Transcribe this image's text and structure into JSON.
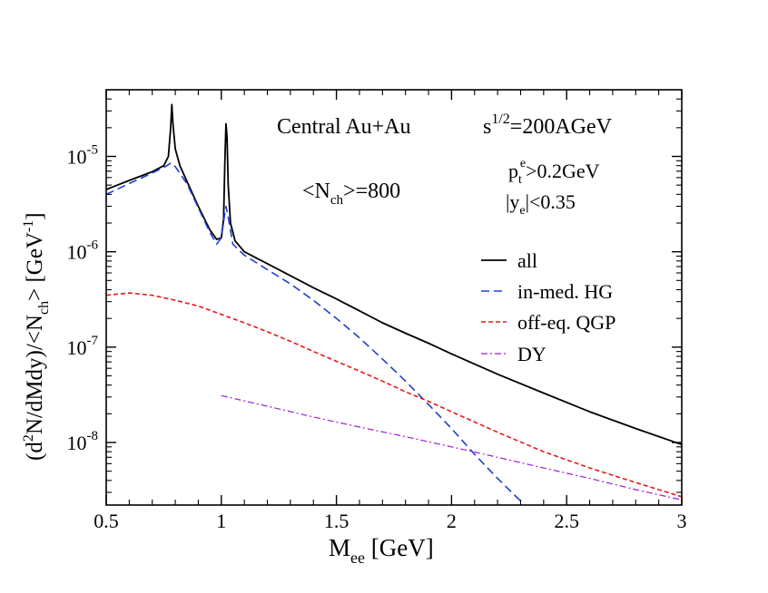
{
  "chart_data": {
    "type": "line",
    "title": "",
    "xlabel": {
      "main": "M",
      "sub": "ee",
      "unit": " [GeV]"
    },
    "ylabel": {
      "p1": "(d",
      "sup1": "2",
      "p2": "N/dMdy)/<N",
      "sub1": "ch",
      "p3": "> [GeV",
      "sup2": "-1",
      "p4": "]"
    },
    "xlim": [
      0.5,
      3.0
    ],
    "ylim": [
      2.3e-09,
      5e-05
    ],
    "yscale": "log",
    "grid": false,
    "xticks": [
      {
        "value": 0.5,
        "label": "0.5"
      },
      {
        "value": 1.0,
        "label": "1"
      },
      {
        "value": 1.5,
        "label": "1.5"
      },
      {
        "value": 2.0,
        "label": "2"
      },
      {
        "value": 2.5,
        "label": "2.5"
      },
      {
        "value": 3.0,
        "label": "3"
      }
    ],
    "yticks": [
      {
        "value": 1e-08,
        "base": "10",
        "exp": "-8"
      },
      {
        "value": 1e-07,
        "base": "10",
        "exp": "-7"
      },
      {
        "value": 1e-06,
        "base": "10",
        "exp": "-6"
      },
      {
        "value": 1e-05,
        "base": "10",
        "exp": "-5"
      }
    ],
    "annotations": {
      "system": "Central Au+Au",
      "energy": {
        "main": "s",
        "sup": "1/2",
        "rest": "=200AGeV"
      },
      "nch": {
        "p1": "<N",
        "sub": "ch",
        "p2": ">=800"
      },
      "pt": {
        "main": "p",
        "sub": "t",
        "sup": "e",
        "rest": ">0.2GeV"
      },
      "ye": {
        "p1": "|y",
        "sub": "e",
        "p2": "|<0.35"
      }
    },
    "legend_position": "right",
    "series": [
      {
        "name": "all",
        "color": "#000000",
        "dash": "solid",
        "points": [
          [
            0.5,
            4.5e-06
          ],
          [
            0.6,
            5.6e-06
          ],
          [
            0.7,
            6.9e-06
          ],
          [
            0.75,
            8e-06
          ],
          [
            0.77,
            1e-05
          ],
          [
            0.78,
            2e-05
          ],
          [
            0.785,
            3.5e-05
          ],
          [
            0.79,
            2.2e-05
          ],
          [
            0.8,
            1.2e-05
          ],
          [
            0.82,
            8e-06
          ],
          [
            0.85,
            5.5e-06
          ],
          [
            0.9,
            3e-06
          ],
          [
            0.95,
            1.7e-06
          ],
          [
            0.98,
            1.35e-06
          ],
          [
            1.0,
            1.4e-06
          ],
          [
            1.01,
            2.2e-06
          ],
          [
            1.015,
            8e-06
          ],
          [
            1.02,
            2.2e-05
          ],
          [
            1.025,
            1.6e-05
          ],
          [
            1.03,
            5e-06
          ],
          [
            1.04,
            2e-06
          ],
          [
            1.06,
            1.3e-06
          ],
          [
            1.1,
            1e-06
          ],
          [
            1.2,
            7.5e-07
          ],
          [
            1.3,
            5.6e-07
          ],
          [
            1.4,
            4.2e-07
          ],
          [
            1.5,
            3.2e-07
          ],
          [
            1.6,
            2.4e-07
          ],
          [
            1.7,
            1.8e-07
          ],
          [
            1.8,
            1.4e-07
          ],
          [
            1.9,
            1.1e-07
          ],
          [
            2.0,
            8.5e-08
          ],
          [
            2.2,
            5.2e-08
          ],
          [
            2.4,
            3.3e-08
          ],
          [
            2.6,
            2.1e-08
          ],
          [
            2.8,
            1.4e-08
          ],
          [
            3.0,
            9.5e-09
          ]
        ]
      },
      {
        "name": "in-med. HG",
        "color": "#1f3fd6",
        "dash": "long",
        "points": [
          [
            0.5,
            4e-06
          ],
          [
            0.6,
            5.2e-06
          ],
          [
            0.7,
            6.7e-06
          ],
          [
            0.76,
            7.9e-06
          ],
          [
            0.78,
            8.5e-06
          ],
          [
            0.8,
            7.8e-06
          ],
          [
            0.85,
            5.2e-06
          ],
          [
            0.9,
            2.9e-06
          ],
          [
            0.95,
            1.6e-06
          ],
          [
            0.98,
            1.2e-06
          ],
          [
            1.0,
            1.4e-06
          ],
          [
            1.015,
            2.5e-06
          ],
          [
            1.02,
            3e-06
          ],
          [
            1.03,
            2.3e-06
          ],
          [
            1.05,
            1.2e-06
          ],
          [
            1.1,
            9.2e-07
          ],
          [
            1.2,
            6.5e-07
          ],
          [
            1.3,
            4.6e-07
          ],
          [
            1.4,
            3.1e-07
          ],
          [
            1.5,
            2e-07
          ],
          [
            1.6,
            1.25e-07
          ],
          [
            1.7,
            7.5e-08
          ],
          [
            1.8,
            4.4e-08
          ],
          [
            1.9,
            2.5e-08
          ],
          [
            2.0,
            1.4e-08
          ],
          [
            2.1,
            7.5e-09
          ],
          [
            2.2,
            4.2e-09
          ],
          [
            2.31,
            2.3e-09
          ]
        ]
      },
      {
        "name": "off-eq. QGP",
        "color": "#e8171c",
        "dash": "short",
        "points": [
          [
            0.5,
            3.5e-07
          ],
          [
            0.6,
            3.7e-07
          ],
          [
            0.7,
            3.5e-07
          ],
          [
            0.8,
            3.1e-07
          ],
          [
            0.9,
            2.7e-07
          ],
          [
            1.0,
            2.2e-07
          ],
          [
            1.1,
            1.8e-07
          ],
          [
            1.2,
            1.45e-07
          ],
          [
            1.3,
            1.15e-07
          ],
          [
            1.4,
            9e-08
          ],
          [
            1.5,
            7.1e-08
          ],
          [
            1.6,
            5.6e-08
          ],
          [
            1.7,
            4.4e-08
          ],
          [
            1.8,
            3.4e-08
          ],
          [
            1.9,
            2.7e-08
          ],
          [
            2.0,
            2.1e-08
          ],
          [
            2.2,
            1.28e-08
          ],
          [
            2.4,
            8e-09
          ],
          [
            2.6,
            5.4e-09
          ],
          [
            2.8,
            3.8e-09
          ],
          [
            3.0,
            2.7e-09
          ]
        ]
      },
      {
        "name": "DY",
        "color": "#9b1fd6",
        "dash": "dashdot",
        "points": [
          [
            1.0,
            3.1e-08
          ],
          [
            1.2,
            2.4e-08
          ],
          [
            1.4,
            1.85e-08
          ],
          [
            1.6,
            1.45e-08
          ],
          [
            1.8,
            1.15e-08
          ],
          [
            2.0,
            9e-09
          ],
          [
            2.2,
            7e-09
          ],
          [
            2.4,
            5.4e-09
          ],
          [
            2.6,
            4.2e-09
          ],
          [
            2.8,
            3.2e-09
          ],
          [
            3.0,
            2.5e-09
          ]
        ]
      }
    ]
  }
}
